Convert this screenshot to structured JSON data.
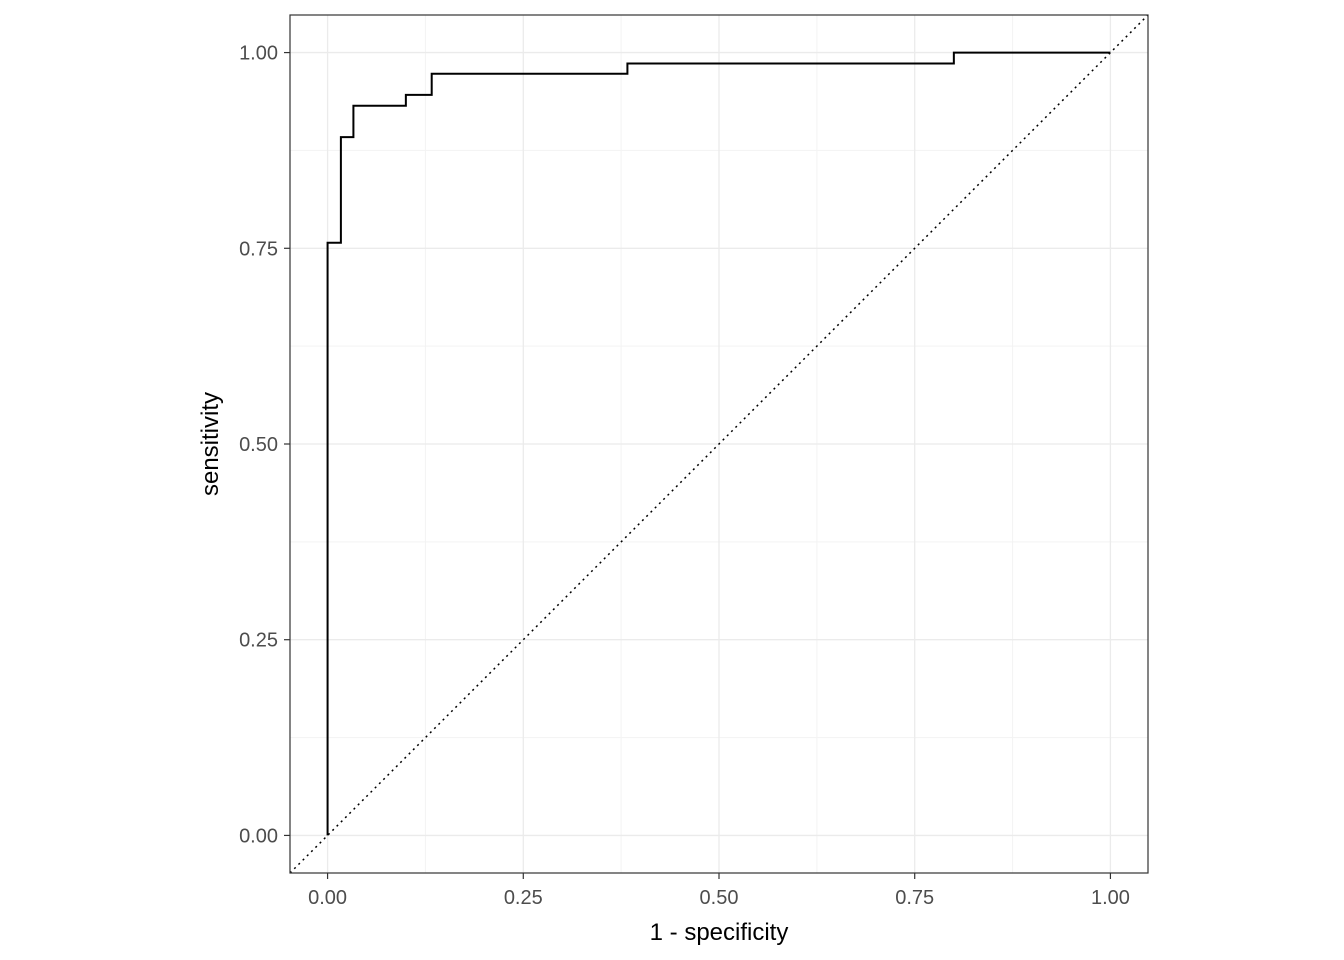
{
  "chart_data": {
    "type": "line",
    "title": "",
    "xlabel": "1 - specificity",
    "ylabel": "sensitivity",
    "xlim": [
      -0.048,
      1.048
    ],
    "ylim": [
      -0.048,
      1.048
    ],
    "x_ticks": [
      {
        "value": 0,
        "label": "0.00"
      },
      {
        "value": 0.25,
        "label": "0.25"
      },
      {
        "value": 0.5,
        "label": "0.50"
      },
      {
        "value": 0.75,
        "label": "0.75"
      },
      {
        "value": 1,
        "label": "1.00"
      }
    ],
    "y_ticks": [
      {
        "value": 0,
        "label": "0.00"
      },
      {
        "value": 0.25,
        "label": "0.25"
      },
      {
        "value": 0.5,
        "label": "0.50"
      },
      {
        "value": 0.75,
        "label": "0.75"
      },
      {
        "value": 1,
        "label": "1.00"
      }
    ],
    "grid": true,
    "colors": {
      "curve": "#000000",
      "grid_major": "#ebebeb",
      "grid_minor": "#f3f3f3",
      "panel_border": "#333333",
      "reference_line": "#000000"
    },
    "series": [
      {
        "style": "step",
        "x": [
          0,
          0,
          0.017,
          0.017,
          0.033,
          0.033,
          0.1,
          0.1,
          0.133,
          0.133,
          0.383,
          0.383,
          0.8,
          0.8,
          1
        ],
        "y": [
          0,
          0.757,
          0.757,
          0.892,
          0.892,
          0.932,
          0.932,
          0.946,
          0.946,
          0.973,
          0.973,
          0.986,
          0.986,
          1,
          1
        ]
      }
    ],
    "reference_line": {
      "style": "dotted",
      "x": [
        -0.048,
        1.048
      ],
      "y": [
        -0.048,
        1.048
      ]
    }
  }
}
